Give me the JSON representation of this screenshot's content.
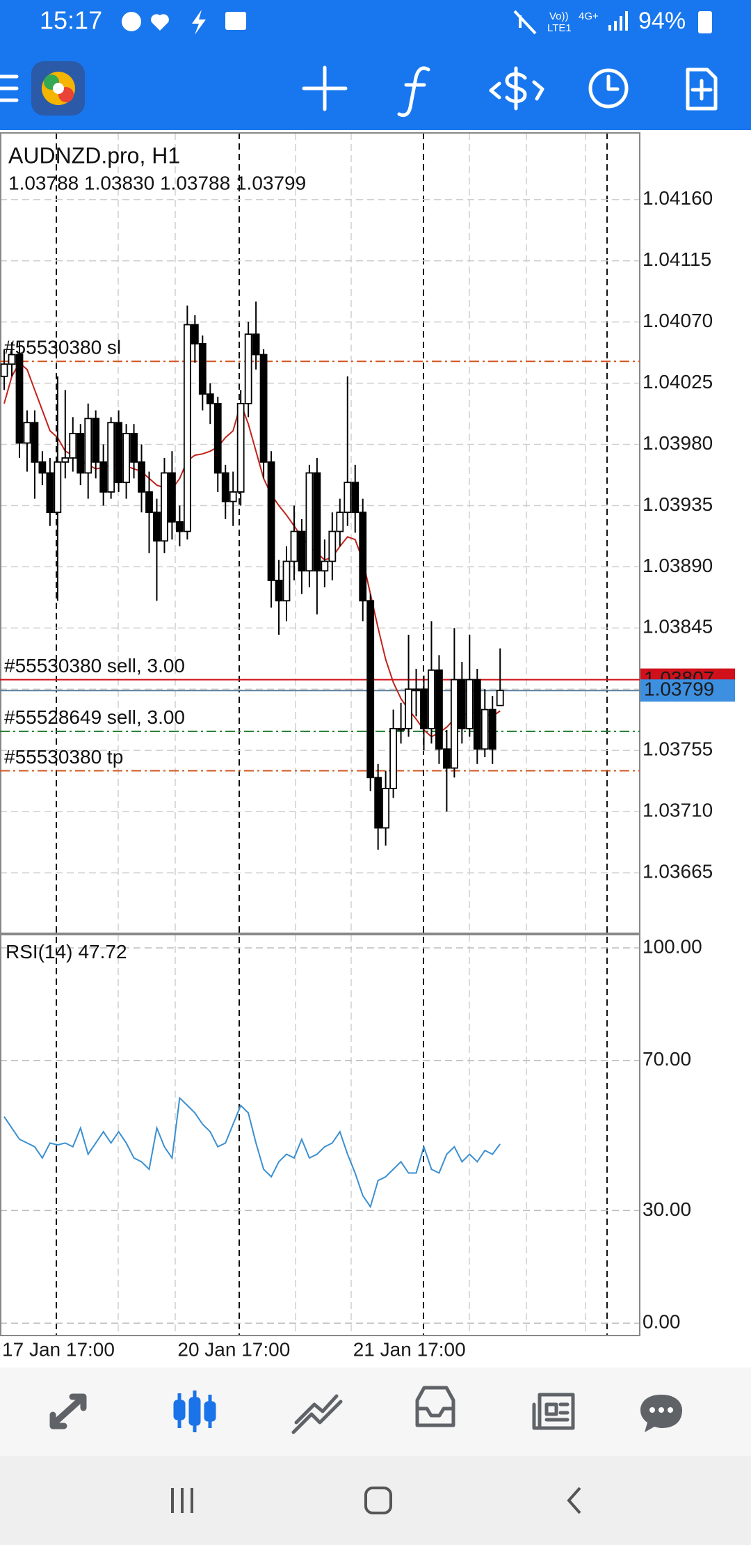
{
  "status_bar": {
    "time": "15:17",
    "volte": "Vo))",
    "lte": "LTE1",
    "network": "4G+",
    "battery": "94%"
  },
  "chart_data": {
    "type": "candlestick",
    "title": "AUDNZD.pro, H1",
    "info_line": "1.03788 1.03830 1.03788 1.03799",
    "open": [
      1.0403,
      1.04039,
      1.04046,
      1.03981,
      1.03996,
      1.03967,
      1.03959,
      1.0393,
      1.03967,
      1.0397,
      1.03988,
      1.03959,
      1.03999,
      1.03967,
      1.03945,
      1.03996,
      1.03952,
      1.03988,
      1.03967,
      1.03945,
      1.0393,
      1.03909,
      1.03959,
      1.03923,
      1.03916,
      1.04068,
      1.04054,
      1.04017,
      1.0401,
      1.03959,
      1.03938,
      1.03945,
      1.0401,
      1.04061,
      1.04046,
      1.03967,
      1.0388,
      1.03865,
      1.03894,
      1.03916,
      1.03887,
      1.03959,
      1.03887,
      1.03894,
      1.03916,
      1.0393,
      1.03952,
      1.0393,
      1.03865,
      1.03735,
      1.03698,
      1.03727,
      1.03771,
      1.03771,
      1.038,
      1.038,
      1.03771,
      1.03814,
      1.03756,
      1.03742,
      1.03807,
      1.03771,
      1.03807,
      1.03756,
      1.03785,
      1.03788
    ],
    "high": [
      1.0405,
      1.04055,
      1.04055,
      1.04005,
      1.04005,
      1.03975,
      1.0397,
      1.0403,
      1.0402,
      1.04,
      1.03995,
      1.0401,
      1.04005,
      1.0398,
      1.04,
      1.04005,
      1.03995,
      1.03995,
      1.0398,
      1.0396,
      1.0394,
      1.0397,
      1.03975,
      1.03935,
      1.04082,
      1.04075,
      1.0406,
      1.04025,
      1.04015,
      1.03965,
      1.0396,
      1.0402,
      1.0407,
      1.04085,
      1.0405,
      1.03975,
      1.03895,
      1.03905,
      1.03935,
      1.03925,
      1.03965,
      1.0397,
      1.0391,
      1.0393,
      1.0394,
      1.0403,
      1.03965,
      1.0394,
      1.0387,
      1.03745,
      1.0374,
      1.03785,
      1.0379,
      1.0384,
      1.03815,
      1.0381,
      1.0385,
      1.03825,
      1.0377,
      1.03845,
      1.0382,
      1.0384,
      1.03815,
      1.038,
      1.03795,
      1.0383
    ],
    "low": [
      1.0402,
      1.0403,
      1.0397,
      1.0396,
      1.0394,
      1.0395,
      1.0392,
      1.03865,
      1.03955,
      1.0396,
      1.0395,
      1.0394,
      1.03955,
      1.03935,
      1.0394,
      1.03945,
      1.0394,
      1.03955,
      1.0393,
      1.039,
      1.03865,
      1.039,
      1.0391,
      1.03905,
      1.0391,
      1.0404,
      1.04005,
      1.03995,
      1.03945,
      1.03925,
      1.0392,
      1.03935,
      1.04,
      1.04035,
      1.03955,
      1.0386,
      1.0384,
      1.0385,
      1.0388,
      1.0387,
      1.03875,
      1.03855,
      1.03875,
      1.0388,
      1.03905,
      1.0392,
      1.03915,
      1.0385,
      1.03725,
      1.03682,
      1.03685,
      1.0372,
      1.0376,
      1.03765,
      1.0378,
      1.03755,
      1.0376,
      1.03745,
      1.0371,
      1.03735,
      1.0376,
      1.03765,
      1.03745,
      1.0375,
      1.03745,
      1.03788
    ],
    "close": [
      1.04039,
      1.04046,
      1.03981,
      1.03996,
      1.03967,
      1.03959,
      1.0393,
      1.03967,
      1.0397,
      1.03988,
      1.03959,
      1.03999,
      1.03967,
      1.03945,
      1.03996,
      1.03952,
      1.03988,
      1.03967,
      1.03945,
      1.0393,
      1.03909,
      1.03959,
      1.03923,
      1.03916,
      1.04068,
      1.04054,
      1.04017,
      1.0401,
      1.03959,
      1.03938,
      1.03945,
      1.0401,
      1.04061,
      1.04046,
      1.03967,
      1.0388,
      1.03865,
      1.03894,
      1.03916,
      1.03887,
      1.03959,
      1.03887,
      1.03894,
      1.03916,
      1.0393,
      1.03952,
      1.0393,
      1.03865,
      1.03735,
      1.03698,
      1.03727,
      1.03771,
      1.03771,
      1.038,
      1.038,
      1.03771,
      1.03814,
      1.03756,
      1.03742,
      1.03807,
      1.03771,
      1.03807,
      1.03756,
      1.03785,
      1.03756,
      1.03799
    ],
    "ma": {
      "color": "#c0231b",
      "values": [
        1.0401,
        1.0403,
        1.0404,
        1.04035,
        1.0402,
        1.04005,
        1.0399,
        1.03985,
        1.03975,
        1.03972,
        1.03968,
        1.03965,
        1.03962,
        1.03963,
        1.03965,
        1.03965,
        1.03964,
        1.03962,
        1.0396,
        1.03955,
        1.0395,
        1.03948,
        1.03947,
        1.03955,
        1.03968,
        1.03972,
        1.03973,
        1.03975,
        1.03978,
        1.03985,
        1.0399,
        1.0401,
        1.03995,
        1.03975,
        1.03955,
        1.03943,
        1.03935,
        1.03928,
        1.0392,
        1.03912,
        1.03905,
        1.039,
        1.03895,
        1.03897,
        1.03905,
        1.03912,
        1.0391,
        1.03895,
        1.0387,
        1.03845,
        1.03822,
        1.03805,
        1.03793,
        1.03785,
        1.03778,
        1.0377,
        1.03765,
        1.03768,
        1.03772,
        1.03778,
        1.0378,
        1.03783,
        1.03783,
        1.03782,
        1.0378,
        1.03784
      ]
    },
    "ylim": [
      1.0362,
      1.04209
    ],
    "yticks": [
      {
        "value": 1.0416,
        "label": "1.04160"
      },
      {
        "value": 1.04115,
        "label": "1.04115"
      },
      {
        "value": 1.0407,
        "label": "1.04070"
      },
      {
        "value": 1.04025,
        "label": "1.04025"
      },
      {
        "value": 1.0398,
        "label": "1.03980"
      },
      {
        "value": 1.03935,
        "label": "1.03935"
      },
      {
        "value": 1.0389,
        "label": "1.03890"
      },
      {
        "value": 1.03845,
        "label": "1.03845"
      },
      {
        "value": 1.038,
        "label": "1.03800"
      },
      {
        "value": 1.03755,
        "label": "1.03755"
      },
      {
        "value": 1.0371,
        "label": "1.03710"
      },
      {
        "value": 1.03665,
        "label": "1.03665"
      }
    ],
    "xlim": [
      -0.55,
      83.3
    ],
    "xticks": [
      {
        "value": 0,
        "label": "17 Jan 17:00"
      },
      {
        "value": 23,
        "label": "20 Jan 17:00"
      },
      {
        "value": 46,
        "label": "21 Jan 17:00"
      }
    ],
    "grid": true,
    "up_color": "#ffffff",
    "down_color": "#000000",
    "bid_color": "#3d8fe0",
    "orders": [
      {
        "label": "#55530380 sl",
        "price": 1.04041,
        "color": "#d2541f",
        "style": "dash-dot"
      },
      {
        "label": "#55530380 sell, 3.00",
        "price": 1.03807,
        "color": "#d0101a",
        "style": "solid"
      },
      {
        "label": "#55528649 sell, 3.00",
        "price": 1.03769,
        "color": "#1e7a2c",
        "style": "dash-dot"
      },
      {
        "label": "#55530380 tp",
        "price": 1.0374,
        "color": "#d2541f",
        "style": "dash-dot"
      }
    ],
    "indicator": {
      "type": "line",
      "name": "RSI(14)",
      "color": "#3b8fd0",
      "ylim": [
        -3.3,
        103.7
      ],
      "yticks": [
        {
          "value": 100,
          "label": "100.00"
        },
        {
          "value": 70,
          "label": "70.00"
        },
        {
          "value": 30,
          "label": "30.00"
        },
        {
          "value": 0,
          "label": "0.00"
        }
      ],
      "values": [
        55,
        52,
        49,
        48,
        47,
        44,
        48,
        47.5,
        48,
        47,
        52,
        45,
        48,
        51,
        48,
        51,
        48,
        44,
        43,
        41,
        52,
        47,
        44,
        60,
        58,
        56,
        53,
        51,
        47,
        48,
        53,
        58,
        56,
        48,
        41,
        39,
        43,
        45,
        44,
        49,
        44,
        45,
        47,
        48,
        51,
        45,
        40,
        34,
        31,
        38,
        39,
        41,
        43,
        40,
        40,
        47,
        41,
        40,
        45,
        47,
        43,
        45,
        43,
        46,
        45,
        47.72
      ]
    }
  }
}
